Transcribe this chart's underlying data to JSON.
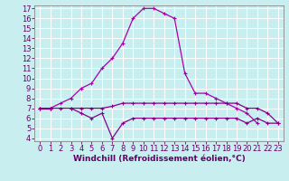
{
  "xlabel": "Windchill (Refroidissement éolien,°C)",
  "background_color": "#c8eef0",
  "grid_color": "#aadddd",
  "line_color": "#aa00aa",
  "line_color2": "#880088",
  "x_hours": [
    0,
    1,
    2,
    3,
    4,
    5,
    6,
    7,
    8,
    9,
    10,
    11,
    12,
    13,
    14,
    15,
    16,
    17,
    18,
    19,
    20,
    21,
    22,
    23
  ],
  "temp_line": [
    7.0,
    7.0,
    7.5,
    8.0,
    9.0,
    9.5,
    11.0,
    12.0,
    13.5,
    16.0,
    17.0,
    17.0,
    16.5,
    16.0,
    10.5,
    8.5,
    8.5,
    8.0,
    7.5,
    7.0,
    6.5,
    5.5,
    null,
    null
  ],
  "mid_line": [
    7.0,
    7.0,
    7.0,
    7.0,
    7.0,
    7.0,
    7.0,
    7.2,
    7.5,
    7.5,
    7.5,
    7.5,
    7.5,
    7.5,
    7.5,
    7.5,
    7.5,
    7.5,
    7.5,
    7.5,
    7.0,
    7.0,
    6.5,
    5.5
  ],
  "low_line": [
    7.0,
    7.0,
    null,
    7.0,
    6.5,
    6.0,
    6.5,
    4.0,
    5.5,
    6.0,
    6.0,
    6.0,
    6.0,
    6.0,
    6.0,
    6.0,
    6.0,
    6.0,
    6.0,
    6.0,
    5.5,
    6.0,
    5.5,
    5.5
  ],
  "ylim_min": 4,
  "ylim_max": 17,
  "xlim_min": 0,
  "xlim_max": 23,
  "ytick_min": 4,
  "ytick_max": 17,
  "xticks": [
    0,
    1,
    2,
    3,
    4,
    5,
    6,
    7,
    8,
    9,
    10,
    11,
    12,
    13,
    14,
    15,
    16,
    17,
    18,
    19,
    20,
    21,
    22,
    23
  ],
  "yticks": [
    4,
    5,
    6,
    7,
    8,
    9,
    10,
    11,
    12,
    13,
    14,
    15,
    16,
    17
  ],
  "tick_fontsize": 6,
  "xlabel_fontsize": 6.5
}
